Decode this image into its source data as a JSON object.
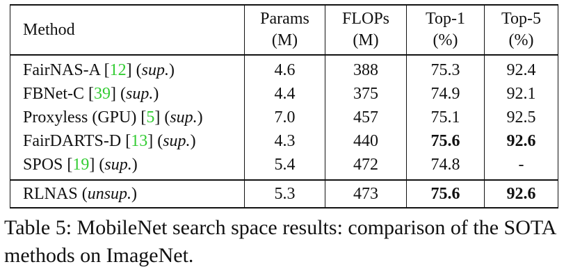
{
  "table": {
    "headers": {
      "method": "Method",
      "params": [
        "Params",
        "(M)"
      ],
      "flops": [
        "FLOPs",
        "(M)"
      ],
      "top1": [
        "Top-1",
        "(%)"
      ],
      "top5": [
        "Top-5",
        "(%)"
      ]
    },
    "rows": [
      {
        "name": "FairNAS-A",
        "cite": "12",
        "tag": "sup.",
        "params": "4.6",
        "flops": "388",
        "top1": "75.3",
        "top5": "92.4"
      },
      {
        "name": "FBNet-C",
        "cite": "39",
        "tag": "sup.",
        "params": "4.4",
        "flops": "375",
        "top1": "74.9",
        "top5": "92.1"
      },
      {
        "name": "Proxyless (GPU)",
        "cite": "5",
        "tag": "sup.",
        "params": "7.0",
        "flops": "457",
        "top1": "75.1",
        "top5": "92.5"
      },
      {
        "name": "FairDARTS-D",
        "cite": "13",
        "tag": "sup.",
        "params": "4.3",
        "flops": "440",
        "top1": "75.6",
        "top5": "92.6"
      },
      {
        "name": "SPOS",
        "cite": "19",
        "tag": "sup.",
        "params": "5.4",
        "flops": "472",
        "top1": "74.8",
        "top5": "-"
      }
    ],
    "ours": {
      "name": "RLNAS",
      "tag": "unsup.",
      "params": "5.3",
      "flops": "473",
      "top1": "75.6",
      "top5": "92.6"
    }
  },
  "caption": "Table 5: MobileNet search space results: comparison of the SOTA methods on ImageNet.",
  "colors": {
    "citation": "#33cc33",
    "text": "#111111"
  }
}
